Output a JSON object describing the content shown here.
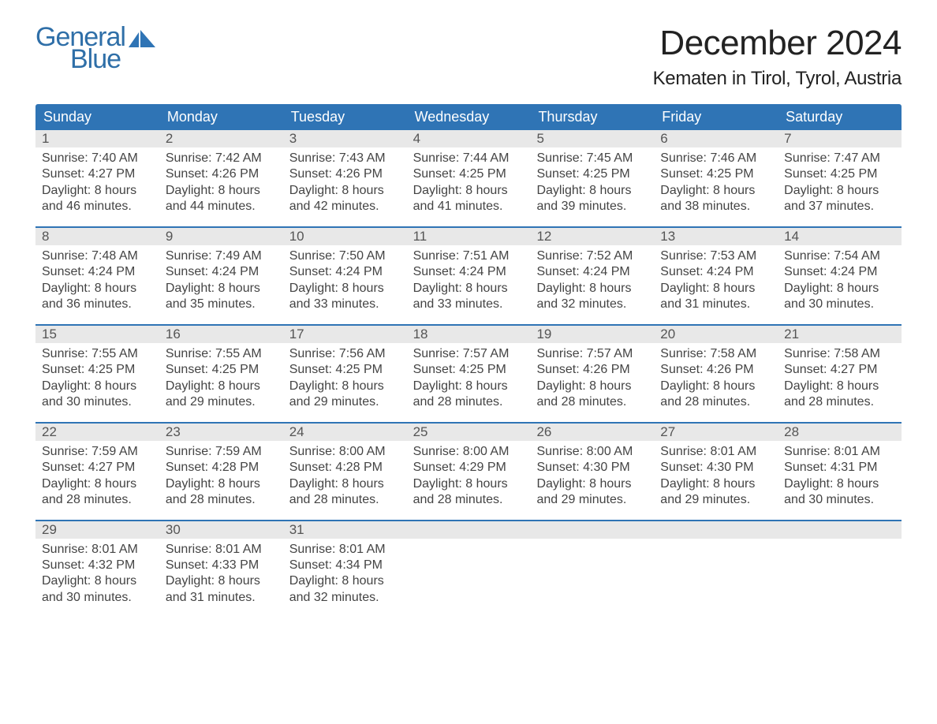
{
  "logo": {
    "general": "General",
    "blue": "Blue",
    "glyph_color": "#2f74b5"
  },
  "title": "December 2024",
  "location": "Kematen in Tirol, Tyrol, Austria",
  "colors": {
    "header_bg": "#2f74b5",
    "header_text": "#ffffff",
    "daynum_band_bg": "#e8e8e8",
    "week_divider": "#2f74b5",
    "body_text": "#444444",
    "logo_text": "#2f6fa8"
  },
  "typography": {
    "title_fontsize": 44,
    "location_fontsize": 24,
    "header_fontsize": 18,
    "cell_fontsize": 16,
    "logo_fontsize": 34
  },
  "weekdays": [
    "Sunday",
    "Monday",
    "Tuesday",
    "Wednesday",
    "Thursday",
    "Friday",
    "Saturday"
  ],
  "weeks": [
    [
      {
        "n": "1",
        "sunrise": "Sunrise: 7:40 AM",
        "sunset": "Sunset: 4:27 PM",
        "dl1": "Daylight: 8 hours",
        "dl2": "and 46 minutes."
      },
      {
        "n": "2",
        "sunrise": "Sunrise: 7:42 AM",
        "sunset": "Sunset: 4:26 PM",
        "dl1": "Daylight: 8 hours",
        "dl2": "and 44 minutes."
      },
      {
        "n": "3",
        "sunrise": "Sunrise: 7:43 AM",
        "sunset": "Sunset: 4:26 PM",
        "dl1": "Daylight: 8 hours",
        "dl2": "and 42 minutes."
      },
      {
        "n": "4",
        "sunrise": "Sunrise: 7:44 AM",
        "sunset": "Sunset: 4:25 PM",
        "dl1": "Daylight: 8 hours",
        "dl2": "and 41 minutes."
      },
      {
        "n": "5",
        "sunrise": "Sunrise: 7:45 AM",
        "sunset": "Sunset: 4:25 PM",
        "dl1": "Daylight: 8 hours",
        "dl2": "and 39 minutes."
      },
      {
        "n": "6",
        "sunrise": "Sunrise: 7:46 AM",
        "sunset": "Sunset: 4:25 PM",
        "dl1": "Daylight: 8 hours",
        "dl2": "and 38 minutes."
      },
      {
        "n": "7",
        "sunrise": "Sunrise: 7:47 AM",
        "sunset": "Sunset: 4:25 PM",
        "dl1": "Daylight: 8 hours",
        "dl2": "and 37 minutes."
      }
    ],
    [
      {
        "n": "8",
        "sunrise": "Sunrise: 7:48 AM",
        "sunset": "Sunset: 4:24 PM",
        "dl1": "Daylight: 8 hours",
        "dl2": "and 36 minutes."
      },
      {
        "n": "9",
        "sunrise": "Sunrise: 7:49 AM",
        "sunset": "Sunset: 4:24 PM",
        "dl1": "Daylight: 8 hours",
        "dl2": "and 35 minutes."
      },
      {
        "n": "10",
        "sunrise": "Sunrise: 7:50 AM",
        "sunset": "Sunset: 4:24 PM",
        "dl1": "Daylight: 8 hours",
        "dl2": "and 33 minutes."
      },
      {
        "n": "11",
        "sunrise": "Sunrise: 7:51 AM",
        "sunset": "Sunset: 4:24 PM",
        "dl1": "Daylight: 8 hours",
        "dl2": "and 33 minutes."
      },
      {
        "n": "12",
        "sunrise": "Sunrise: 7:52 AM",
        "sunset": "Sunset: 4:24 PM",
        "dl1": "Daylight: 8 hours",
        "dl2": "and 32 minutes."
      },
      {
        "n": "13",
        "sunrise": "Sunrise: 7:53 AM",
        "sunset": "Sunset: 4:24 PM",
        "dl1": "Daylight: 8 hours",
        "dl2": "and 31 minutes."
      },
      {
        "n": "14",
        "sunrise": "Sunrise: 7:54 AM",
        "sunset": "Sunset: 4:24 PM",
        "dl1": "Daylight: 8 hours",
        "dl2": "and 30 minutes."
      }
    ],
    [
      {
        "n": "15",
        "sunrise": "Sunrise: 7:55 AM",
        "sunset": "Sunset: 4:25 PM",
        "dl1": "Daylight: 8 hours",
        "dl2": "and 30 minutes."
      },
      {
        "n": "16",
        "sunrise": "Sunrise: 7:55 AM",
        "sunset": "Sunset: 4:25 PM",
        "dl1": "Daylight: 8 hours",
        "dl2": "and 29 minutes."
      },
      {
        "n": "17",
        "sunrise": "Sunrise: 7:56 AM",
        "sunset": "Sunset: 4:25 PM",
        "dl1": "Daylight: 8 hours",
        "dl2": "and 29 minutes."
      },
      {
        "n": "18",
        "sunrise": "Sunrise: 7:57 AM",
        "sunset": "Sunset: 4:25 PM",
        "dl1": "Daylight: 8 hours",
        "dl2": "and 28 minutes."
      },
      {
        "n": "19",
        "sunrise": "Sunrise: 7:57 AM",
        "sunset": "Sunset: 4:26 PM",
        "dl1": "Daylight: 8 hours",
        "dl2": "and 28 minutes."
      },
      {
        "n": "20",
        "sunrise": "Sunrise: 7:58 AM",
        "sunset": "Sunset: 4:26 PM",
        "dl1": "Daylight: 8 hours",
        "dl2": "and 28 minutes."
      },
      {
        "n": "21",
        "sunrise": "Sunrise: 7:58 AM",
        "sunset": "Sunset: 4:27 PM",
        "dl1": "Daylight: 8 hours",
        "dl2": "and 28 minutes."
      }
    ],
    [
      {
        "n": "22",
        "sunrise": "Sunrise: 7:59 AM",
        "sunset": "Sunset: 4:27 PM",
        "dl1": "Daylight: 8 hours",
        "dl2": "and 28 minutes."
      },
      {
        "n": "23",
        "sunrise": "Sunrise: 7:59 AM",
        "sunset": "Sunset: 4:28 PM",
        "dl1": "Daylight: 8 hours",
        "dl2": "and 28 minutes."
      },
      {
        "n": "24",
        "sunrise": "Sunrise: 8:00 AM",
        "sunset": "Sunset: 4:28 PM",
        "dl1": "Daylight: 8 hours",
        "dl2": "and 28 minutes."
      },
      {
        "n": "25",
        "sunrise": "Sunrise: 8:00 AM",
        "sunset": "Sunset: 4:29 PM",
        "dl1": "Daylight: 8 hours",
        "dl2": "and 28 minutes."
      },
      {
        "n": "26",
        "sunrise": "Sunrise: 8:00 AM",
        "sunset": "Sunset: 4:30 PM",
        "dl1": "Daylight: 8 hours",
        "dl2": "and 29 minutes."
      },
      {
        "n": "27",
        "sunrise": "Sunrise: 8:01 AM",
        "sunset": "Sunset: 4:30 PM",
        "dl1": "Daylight: 8 hours",
        "dl2": "and 29 minutes."
      },
      {
        "n": "28",
        "sunrise": "Sunrise: 8:01 AM",
        "sunset": "Sunset: 4:31 PM",
        "dl1": "Daylight: 8 hours",
        "dl2": "and 30 minutes."
      }
    ],
    [
      {
        "n": "29",
        "sunrise": "Sunrise: 8:01 AM",
        "sunset": "Sunset: 4:32 PM",
        "dl1": "Daylight: 8 hours",
        "dl2": "and 30 minutes."
      },
      {
        "n": "30",
        "sunrise": "Sunrise: 8:01 AM",
        "sunset": "Sunset: 4:33 PM",
        "dl1": "Daylight: 8 hours",
        "dl2": "and 31 minutes."
      },
      {
        "n": "31",
        "sunrise": "Sunrise: 8:01 AM",
        "sunset": "Sunset: 4:34 PM",
        "dl1": "Daylight: 8 hours",
        "dl2": "and 32 minutes."
      },
      null,
      null,
      null,
      null
    ]
  ]
}
